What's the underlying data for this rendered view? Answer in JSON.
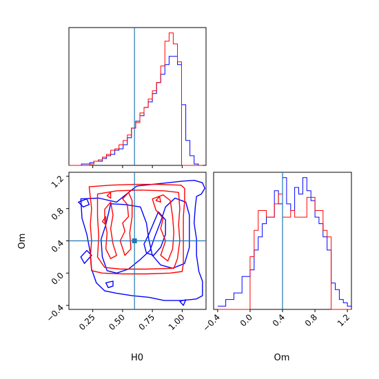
{
  "chart_data": {
    "type": "corner",
    "colors": {
      "run_a": "#0000ff",
      "run_b": "#ff0000",
      "truth": "#1f77b4",
      "frame": "#000000"
    },
    "parameters": [
      "H0",
      "Om"
    ],
    "truths": {
      "H0": 0.6,
      "Om": 0.4
    },
    "axes": {
      "H0": {
        "label": "H0",
        "range": [
          0.05,
          1.2
        ],
        "ticks": [
          0.25,
          0.5,
          0.75,
          1.0
        ],
        "tick_labels": [
          "0.25",
          "0.50",
          "0.75",
          "1.00"
        ]
      },
      "Om": {
        "label": "Om",
        "range": [
          -0.45,
          1.25
        ],
        "ticks": [
          -0.4,
          0.0,
          0.4,
          0.8,
          1.2
        ],
        "tick_labels": [
          "−0.4",
          "0.0",
          "0.4",
          "0.8",
          "1.2"
        ]
      }
    },
    "hist_H0": {
      "bin_edges": [
        0.05,
        0.085,
        0.12,
        0.155,
        0.19,
        0.225,
        0.26,
        0.295,
        0.33,
        0.365,
        0.4,
        0.435,
        0.47,
        0.505,
        0.54,
        0.575,
        0.61,
        0.645,
        0.68,
        0.715,
        0.75,
        0.785,
        0.82,
        0.855,
        0.89,
        0.925,
        0.96,
        0.995,
        1.03,
        1.065,
        1.1,
        1.135,
        1.17
      ],
      "blue": [
        0,
        0,
        0,
        1,
        1,
        2,
        3,
        3,
        5,
        7,
        8,
        11,
        12,
        15,
        20,
        27,
        32,
        36,
        42,
        46,
        52,
        60,
        66,
        73,
        79,
        79,
        73,
        44,
        18,
        7,
        1,
        0
      ],
      "red": [
        0,
        0,
        0,
        0,
        0,
        1,
        3,
        4,
        6,
        8,
        11,
        12,
        15,
        18,
        22,
        27,
        31,
        38,
        42,
        48,
        54,
        60,
        72,
        90,
        96,
        88,
        75,
        0,
        0,
        0,
        0,
        0
      ]
    },
    "hist_Om": {
      "bin_edges": [
        -0.4,
        -0.3,
        -0.2,
        -0.1,
        0.0,
        0.05,
        0.1,
        0.15,
        0.2,
        0.25,
        0.3,
        0.35,
        0.4,
        0.45,
        0.5,
        0.55,
        0.6,
        0.65,
        0.7,
        0.75,
        0.8,
        0.85,
        0.9,
        0.95,
        1.0,
        1.05,
        1.1,
        1.15,
        1.2,
        1.25
      ],
      "blue": [
        1,
        3,
        5,
        10,
        12,
        18,
        22,
        26,
        28,
        28,
        36,
        32,
        40,
        32,
        30,
        37,
        35,
        40,
        36,
        33,
        28,
        26,
        22,
        18,
        8,
        6,
        3,
        2,
        1
      ],
      "red": [
        0,
        0,
        0,
        0,
        16,
        24,
        30,
        30,
        28,
        28,
        32,
        35,
        28,
        28,
        30,
        28,
        28,
        28,
        34,
        34,
        30,
        30,
        24,
        22,
        0,
        0,
        0,
        0,
        0
      ]
    },
    "contours": {
      "red": [
        [
          [
            0.22,
            1.07
          ],
          [
            0.4,
            1.09
          ],
          [
            0.6,
            1.1
          ],
          [
            0.8,
            1.1
          ],
          [
            0.99,
            1.09
          ],
          [
            1.02,
            1.05
          ],
          [
            1.02,
            0.9
          ],
          [
            1.01,
            0.7
          ],
          [
            1.01,
            0.5
          ],
          [
            1.01,
            0.3
          ],
          [
            1.01,
            0.12
          ],
          [
            1.0,
            0.02
          ],
          [
            0.9,
            0.0
          ],
          [
            0.7,
            -0.01
          ],
          [
            0.5,
            -0.01
          ],
          [
            0.33,
            0.0
          ],
          [
            0.24,
            0.03
          ],
          [
            0.23,
            0.2
          ],
          [
            0.24,
            0.4
          ],
          [
            0.23,
            0.6
          ],
          [
            0.24,
            0.8
          ],
          [
            0.22,
            1.07
          ]
        ],
        [
          [
            0.29,
            0.98
          ],
          [
            0.45,
            1.02
          ],
          [
            0.65,
            1.03
          ],
          [
            0.85,
            1.02
          ],
          [
            0.97,
            1.0
          ],
          [
            0.98,
            0.8
          ],
          [
            0.97,
            0.6
          ],
          [
            0.98,
            0.4
          ],
          [
            0.96,
            0.18
          ],
          [
            0.93,
            0.06
          ],
          [
            0.7,
            0.05
          ],
          [
            0.48,
            0.05
          ],
          [
            0.35,
            0.07
          ],
          [
            0.29,
            0.2
          ],
          [
            0.3,
            0.45
          ],
          [
            0.29,
            0.7
          ],
          [
            0.29,
            0.98
          ]
        ],
        [
          [
            0.35,
            0.79
          ],
          [
            0.4,
            0.88
          ],
          [
            0.42,
            0.72
          ],
          [
            0.4,
            0.55
          ],
          [
            0.42,
            0.36
          ],
          [
            0.45,
            0.22
          ],
          [
            0.4,
            0.18
          ],
          [
            0.36,
            0.3
          ],
          [
            0.37,
            0.5
          ],
          [
            0.35,
            0.65
          ],
          [
            0.35,
            0.79
          ]
        ],
        [
          [
            0.48,
            0.4
          ],
          [
            0.52,
            0.52
          ],
          [
            0.5,
            0.62
          ],
          [
            0.55,
            0.7
          ],
          [
            0.54,
            0.85
          ],
          [
            0.5,
            0.92
          ],
          [
            0.55,
            1.0
          ],
          [
            0.58,
            0.9
          ],
          [
            0.58,
            0.7
          ],
          [
            0.56,
            0.5
          ],
          [
            0.57,
            0.3
          ],
          [
            0.52,
            0.22
          ],
          [
            0.48,
            0.4
          ]
        ],
        [
          [
            0.75,
            0.92
          ],
          [
            0.84,
            0.97
          ],
          [
            0.9,
            0.9
          ],
          [
            0.92,
            0.7
          ],
          [
            0.93,
            0.5
          ],
          [
            0.92,
            0.3
          ],
          [
            0.88,
            0.15
          ],
          [
            0.82,
            0.22
          ],
          [
            0.86,
            0.4
          ],
          [
            0.82,
            0.55
          ],
          [
            0.84,
            0.68
          ],
          [
            0.78,
            0.78
          ],
          [
            0.75,
            0.92
          ]
        ],
        [
          [
            0.33,
            0.64
          ],
          [
            0.36,
            0.7
          ],
          [
            0.36,
            0.6
          ],
          [
            0.33,
            0.64
          ]
        ],
        [
          [
            0.37,
            0.96
          ],
          [
            0.4,
            1.0
          ],
          [
            0.4,
            0.93
          ],
          [
            0.37,
            0.96
          ]
        ],
        [
          [
            0.78,
            0.9
          ],
          [
            0.81,
            0.95
          ],
          [
            0.82,
            0.88
          ],
          [
            0.78,
            0.9
          ]
        ]
      ],
      "blue": [
        [
          [
            0.15,
            0.92
          ],
          [
            0.3,
            0.93
          ],
          [
            0.45,
            0.88
          ],
          [
            0.55,
            1.0
          ],
          [
            0.62,
            1.08
          ],
          [
            0.75,
            1.1
          ],
          [
            0.88,
            1.12
          ],
          [
            1.0,
            1.14
          ],
          [
            1.1,
            1.15
          ],
          [
            1.17,
            1.12
          ],
          [
            1.19,
            1.05
          ],
          [
            1.16,
            0.98
          ],
          [
            1.12,
            0.95
          ],
          [
            1.11,
            0.82
          ],
          [
            1.1,
            0.62
          ],
          [
            1.12,
            0.42
          ],
          [
            1.12,
            0.22
          ],
          [
            1.14,
            0.02
          ],
          [
            1.17,
            -0.1
          ],
          [
            1.17,
            -0.28
          ],
          [
            1.12,
            -0.32
          ],
          [
            1.0,
            -0.34
          ],
          [
            0.85,
            -0.34
          ],
          [
            0.72,
            -0.3
          ],
          [
            0.58,
            -0.28
          ],
          [
            0.45,
            -0.25
          ],
          [
            0.35,
            -0.22
          ],
          [
            0.28,
            -0.12
          ],
          [
            0.24,
            0.05
          ],
          [
            0.23,
            0.25
          ],
          [
            0.2,
            0.48
          ],
          [
            0.16,
            0.68
          ],
          [
            0.15,
            0.92
          ]
        ],
        [
          [
            0.4,
            0.86
          ],
          [
            0.52,
            0.85
          ],
          [
            0.65,
            0.82
          ],
          [
            0.7,
            0.62
          ],
          [
            0.72,
            0.42
          ],
          [
            0.75,
            0.22
          ],
          [
            0.82,
            0.1
          ],
          [
            0.92,
            0.06
          ],
          [
            1.02,
            0.12
          ],
          [
            1.06,
            0.32
          ],
          [
            1.06,
            0.52
          ],
          [
            1.06,
            0.72
          ],
          [
            1.03,
            0.88
          ],
          [
            0.94,
            0.93
          ],
          [
            0.86,
            0.82
          ],
          [
            0.82,
            0.64
          ],
          [
            0.77,
            0.45
          ],
          [
            0.73,
            0.28
          ],
          [
            0.65,
            0.17
          ],
          [
            0.55,
            0.05
          ],
          [
            0.45,
            0.0
          ],
          [
            0.37,
            0.03
          ],
          [
            0.33,
            0.2
          ],
          [
            0.32,
            0.42
          ],
          [
            0.36,
            0.6
          ],
          [
            0.4,
            0.86
          ]
        ],
        [
          [
            0.68,
            0.36
          ],
          [
            0.72,
            0.48
          ],
          [
            0.76,
            0.62
          ],
          [
            0.8,
            0.76
          ],
          [
            0.86,
            0.66
          ],
          [
            0.86,
            0.48
          ],
          [
            0.82,
            0.32
          ],
          [
            0.76,
            0.22
          ],
          [
            0.7,
            0.25
          ],
          [
            0.68,
            0.36
          ]
        ],
        [
          [
            0.13,
            0.88
          ],
          [
            0.2,
            0.92
          ],
          [
            0.22,
            0.85
          ],
          [
            0.17,
            0.82
          ],
          [
            0.13,
            0.88
          ]
        ],
        [
          [
            0.15,
            0.2
          ],
          [
            0.2,
            0.28
          ],
          [
            0.24,
            0.22
          ],
          [
            0.18,
            0.12
          ],
          [
            0.15,
            0.2
          ]
        ],
        [
          [
            0.36,
            -0.12
          ],
          [
            0.42,
            -0.1
          ],
          [
            0.42,
            -0.16
          ],
          [
            0.38,
            -0.18
          ],
          [
            0.36,
            -0.12
          ]
        ],
        [
          [
            0.98,
            -0.35
          ],
          [
            1.03,
            -0.33
          ],
          [
            1.01,
            -0.4
          ],
          [
            0.98,
            -0.35
          ]
        ]
      ]
    }
  }
}
